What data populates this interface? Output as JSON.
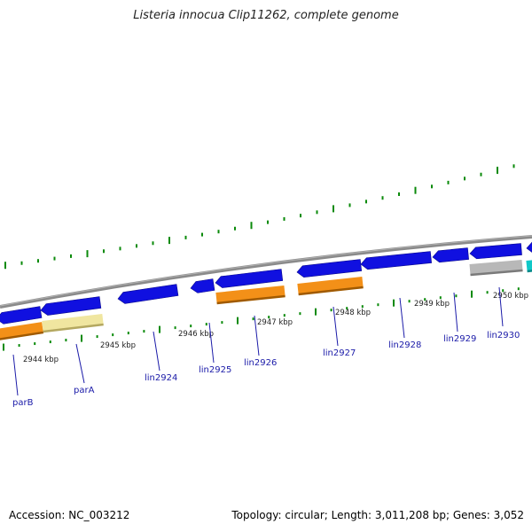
{
  "title": "Listeria innocua Clip11262, complete genome",
  "footer": {
    "accession": "Accession: NC_003212",
    "stats": "Topology: circular; Length: 3,011,208 bp; Genes: 3,052"
  },
  "colors": {
    "forward_cds": "#1010e0",
    "orange_track": "#f39018",
    "pale_yellow_track": "#f0e6a0",
    "gray_track": "#b8b8b8",
    "cyan_track": "#10c8c8",
    "backbone": "#888888",
    "tick_green": "#0a8a0a",
    "label_blue": "#1a1aa8"
  },
  "kbp_labels": [
    "2944 kbp",
    "2945 kbp",
    "2946 kbp",
    "2947 kbp",
    "2948 kbp",
    "2949 kbp",
    "2950 kbp"
  ],
  "gene_labels": [
    "parB",
    "parA",
    "lin2924",
    "lin2925",
    "lin2926",
    "lin2927",
    "lin2928",
    "lin2929",
    "lin2930"
  ]
}
